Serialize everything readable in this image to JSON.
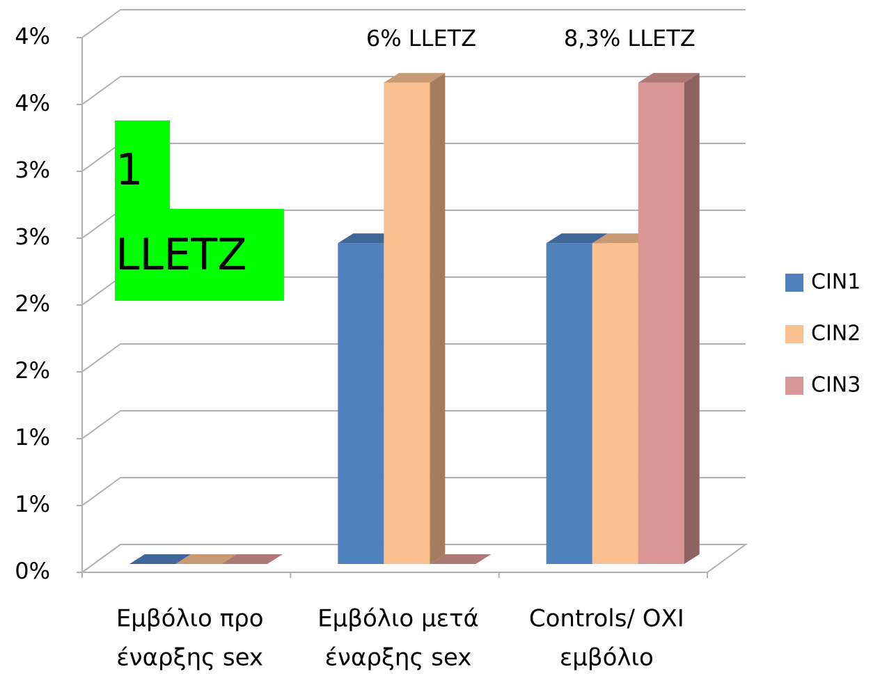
{
  "chart_data": {
    "type": "bar3d",
    "categories": [
      [
        "Εμβόλιο προ",
        "έναρξης sex"
      ],
      [
        "Εμβόλιο μετά",
        "έναρξης sex"
      ],
      [
        "Controls/ ΟΧΙ",
        "εμβόλιο"
      ]
    ],
    "series": [
      {
        "name": "CIN1",
        "color": "#4f81bd",
        "values": [
          0,
          2.4,
          2.4
        ]
      },
      {
        "name": "CIN2",
        "color": "#fac090",
        "values": [
          0,
          3.6,
          2.4
        ]
      },
      {
        "name": "CIN3",
        "color": "#d99694",
        "values": [
          0,
          0,
          3.6
        ]
      }
    ],
    "ylim": [
      0,
      4
    ],
    "yticks": [
      {
        "value": 0,
        "label": "0%"
      },
      {
        "value": 0.5,
        "label": "1%"
      },
      {
        "value": 1,
        "label": "1%"
      },
      {
        "value": 1.5,
        "label": "2%"
      },
      {
        "value": 2,
        "label": "2%"
      },
      {
        "value": 2.5,
        "label": "3%"
      },
      {
        "value": 3,
        "label": "3%"
      },
      {
        "value": 3.5,
        "label": "4%"
      },
      {
        "value": 4,
        "label": "4%"
      }
    ],
    "grid": true,
    "legend": "right",
    "annotations": [
      {
        "text": "6% LLETZ",
        "category": 1
      },
      {
        "text": "8,3% LLETZ",
        "category": 2
      }
    ],
    "highlight": {
      "lines": [
        "1",
        "LLETZ"
      ],
      "color": "#00ff00"
    }
  }
}
